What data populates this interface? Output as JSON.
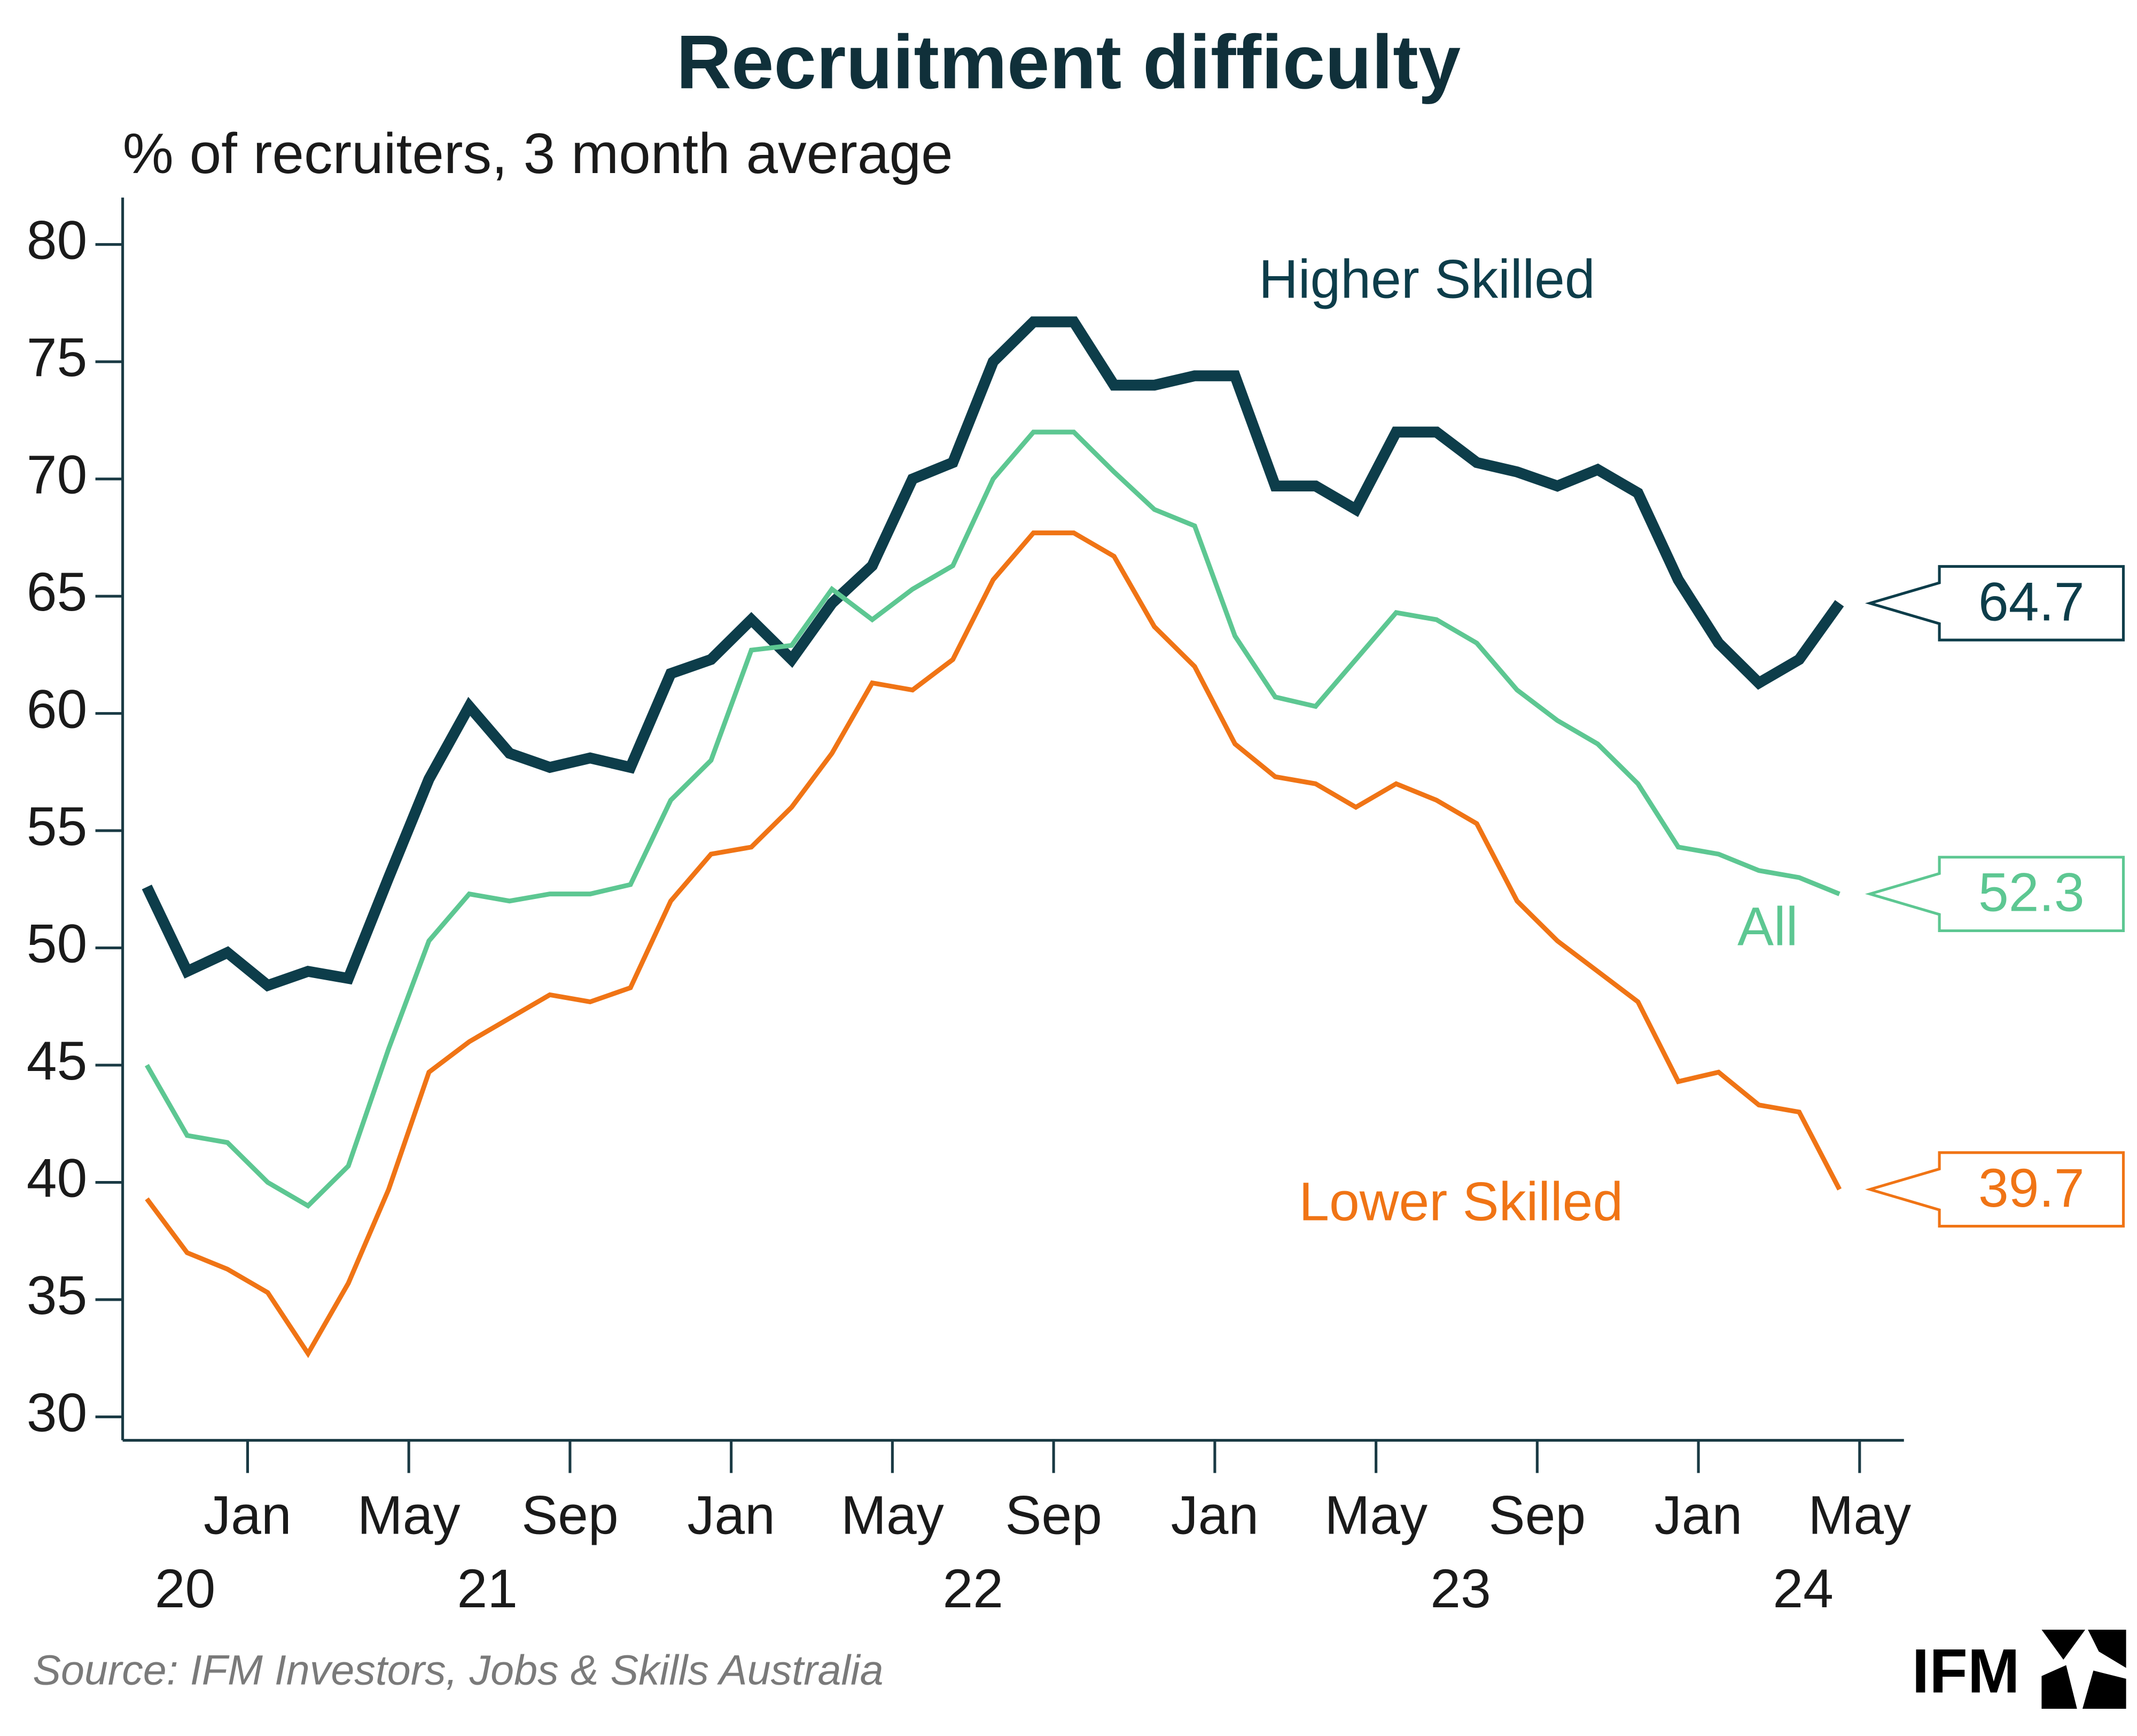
{
  "chart_data": {
    "type": "line",
    "title": "Recruitment difficulty",
    "subtitle": "% of recruiters, 3 month average",
    "source": "Source: IFM Investors, Jobs & Skills Australia",
    "brand": "IFM",
    "xlim": [
      -0.6,
      43.6
    ],
    "xticks": [
      {
        "value": 2.5,
        "label": "Jan"
      },
      {
        "value": 6.5,
        "label": "May"
      },
      {
        "value": 10.5,
        "label": "Sep"
      },
      {
        "value": 14.5,
        "label": "Jan"
      },
      {
        "value": 18.5,
        "label": "May"
      },
      {
        "value": 22.5,
        "label": "Sep"
      },
      {
        "value": 26.5,
        "label": "Jan"
      },
      {
        "value": 30.5,
        "label": "May"
      },
      {
        "value": 34.5,
        "label": "Sep"
      },
      {
        "value": 38.5,
        "label": "Jan"
      },
      {
        "value": 42.5,
        "label": "May"
      }
    ],
    "year_ticks": [
      {
        "value": 0.95,
        "label": "20"
      },
      {
        "value": 8.45,
        "label": "21"
      },
      {
        "value": 20.5,
        "label": "22"
      },
      {
        "value": 32.6,
        "label": "23"
      },
      {
        "value": 41.1,
        "label": "24"
      }
    ],
    "ylim": [
      29,
      82
    ],
    "yticks": [
      30,
      35,
      40,
      45,
      50,
      55,
      60,
      65,
      70,
      75,
      80
    ],
    "series": [
      {
        "name": "Higher Skilled",
        "color": "#0d3d4a",
        "values": [
          52.6,
          49.0,
          49.8,
          48.4,
          49.0,
          48.7,
          53.0,
          57.2,
          60.3,
          58.3,
          57.7,
          58.1,
          57.7,
          61.7,
          62.3,
          64.0,
          62.3,
          64.7,
          66.3,
          70.0,
          70.7,
          75.0,
          76.7,
          76.7,
          74.0,
          74.0,
          74.4,
          74.4,
          69.7,
          69.7,
          68.7,
          72.0,
          72.0,
          70.7,
          70.3,
          69.7,
          70.4,
          69.4,
          65.7,
          63.0,
          61.3,
          62.3,
          64.7
        ]
      },
      {
        "name": "All",
        "color": "#5dc792",
        "values": [
          45.0,
          42.0,
          41.7,
          40.0,
          39.0,
          40.7,
          45.7,
          50.3,
          52.3,
          52.0,
          52.3,
          52.3,
          52.7,
          56.3,
          58.0,
          62.7,
          62.9,
          65.3,
          64.0,
          65.3,
          66.3,
          70.0,
          72.0,
          72.0,
          70.3,
          68.7,
          68.0,
          63.3,
          60.7,
          60.3,
          62.3,
          64.3,
          64.0,
          63.0,
          61.0,
          59.7,
          58.7,
          57.0,
          54.3,
          54.0,
          53.3,
          53.0,
          52.3
        ]
      },
      {
        "name": "Lower Skilled",
        "color": "#f07415",
        "values": [
          39.3,
          37.0,
          36.3,
          35.3,
          32.7,
          35.7,
          39.7,
          44.7,
          46.0,
          47.0,
          48.0,
          47.7,
          48.3,
          52.0,
          54.0,
          54.3,
          56.0,
          58.3,
          61.3,
          61.0,
          62.3,
          65.7,
          67.7,
          67.7,
          66.7,
          63.7,
          62.0,
          58.7,
          57.3,
          57.0,
          56.0,
          57.0,
          56.3,
          55.3,
          52.0,
          50.3,
          49.0,
          47.7,
          44.3,
          44.7,
          43.3,
          43.0,
          39.7
        ]
      }
    ]
  }
}
